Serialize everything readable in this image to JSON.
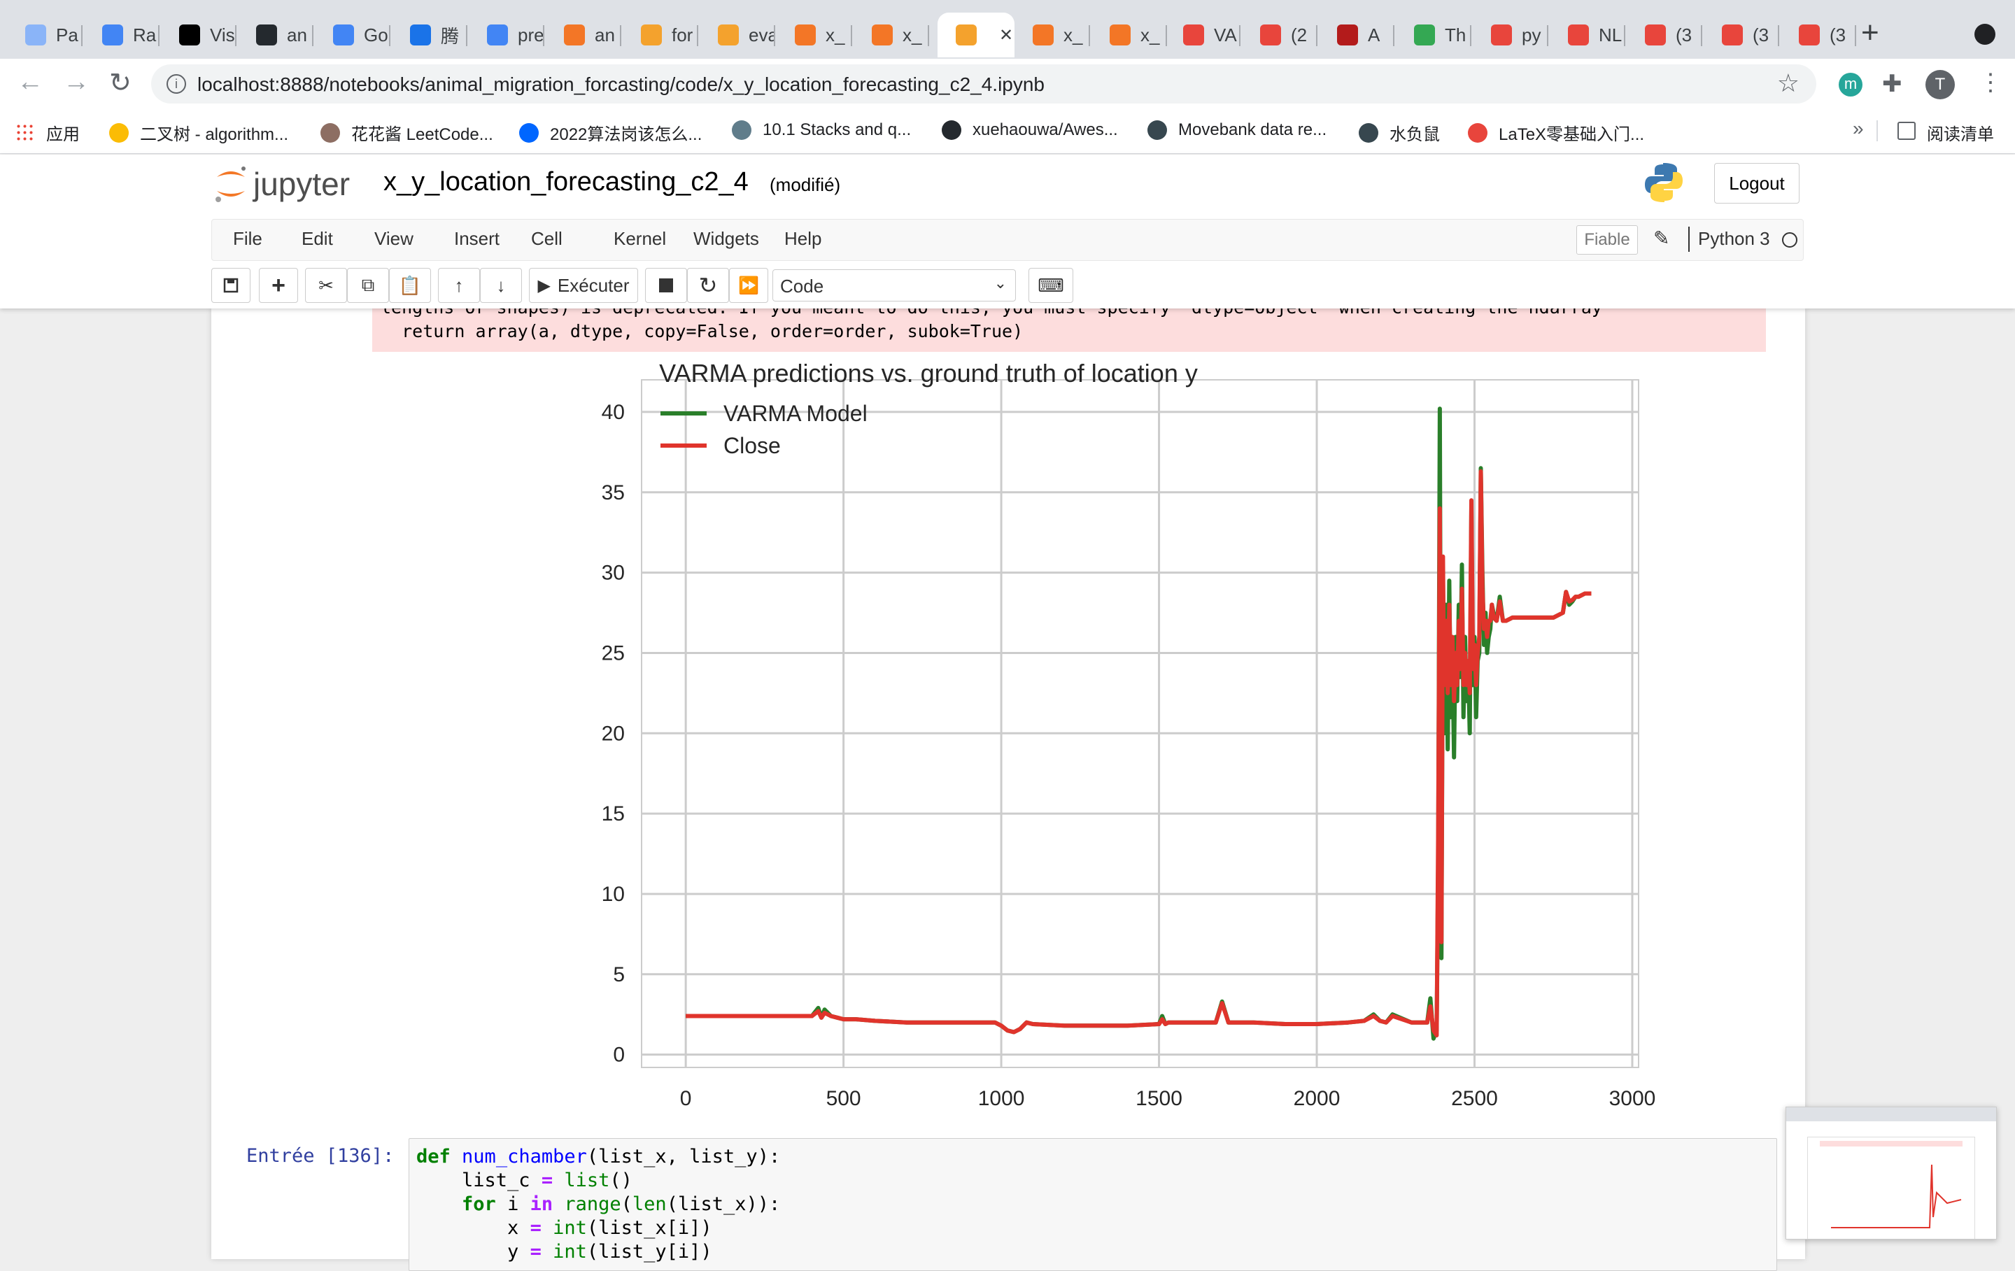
{
  "browser": {
    "tabs": [
      {
        "label": "Pa",
        "color": "#8ab4f8"
      },
      {
        "label": "Ra",
        "color": "#4285f4"
      },
      {
        "label": "Vis",
        "color": "#000000"
      },
      {
        "label": "an",
        "color": "#24292e"
      },
      {
        "label": "Go",
        "color": "#4285f4"
      },
      {
        "label": "腾",
        "color": "#1a73e8"
      },
      {
        "label": "pre",
        "color": "#4285f4"
      },
      {
        "label": "an",
        "color": "#f37626"
      },
      {
        "label": "for",
        "color": "#f4a22d"
      },
      {
        "label": "eva",
        "color": "#f4a22d"
      },
      {
        "label": "x_",
        "color": "#f37626"
      },
      {
        "label": "x_",
        "color": "#f37626"
      },
      {
        "label": "",
        "color": "#f4a22d",
        "active": true
      },
      {
        "label": "x_",
        "color": "#f37626"
      },
      {
        "label": "x_",
        "color": "#f37626"
      },
      {
        "label": "VA",
        "color": "#e8453c"
      },
      {
        "label": "(2",
        "color": "#e8453c"
      },
      {
        "label": "A",
        "color": "#b31b1b"
      },
      {
        "label": "Th",
        "color": "#34a853"
      },
      {
        "label": "py",
        "color": "#e8453c"
      },
      {
        "label": "NL",
        "color": "#e8453c"
      },
      {
        "label": "(3",
        "color": "#e8453c"
      },
      {
        "label": "(3",
        "color": "#e8453c"
      },
      {
        "label": "(3",
        "color": "#e8453c"
      }
    ],
    "url": "localhost:8888/notebooks/animal_migration_forcasting/code/x_y_location_forecasting_c2_4.ipynb",
    "bookmarks": [
      {
        "label": "应用",
        "color": "#4285f4"
      },
      {
        "label": "二叉树 - algorithm...",
        "color": "#fbbc05"
      },
      {
        "label": "花花酱 LeetCode...",
        "color": "#8d6e63"
      },
      {
        "label": "2022算法岗该怎么...",
        "color": "#0066ff"
      },
      {
        "label": "10.1 Stacks and q...",
        "color": "#607d8b"
      },
      {
        "label": "xuehaouwa/Awes...",
        "color": "#24292e"
      },
      {
        "label": "Movebank data re...",
        "color": "#37474f"
      },
      {
        "label": "水负鼠",
        "color": "#37474f"
      },
      {
        "label": "LaTeX零基础入门...",
        "color": "#e8453c"
      }
    ],
    "reading_list": "阅读清单",
    "more": "»",
    "profile_initial": "T",
    "ext_initial": "m"
  },
  "jupyter": {
    "logo_text": "jupyter",
    "notebook_title": "x_y_location_forecasting_c2_4",
    "modified": "(modifié)",
    "logout": "Logout",
    "menus": [
      "File",
      "Edit",
      "View",
      "Insert",
      "Cell",
      "Kernel",
      "Widgets",
      "Help"
    ],
    "trusted": "Fiable",
    "kernel": "Python 3",
    "run_label": "Exécuter",
    "cell_type": "Code"
  },
  "output": {
    "stderr_line1": "lengths or shapes) is deprecated. If you meant to do this, you must specify 'dtype=object' when creating the ndarray",
    "stderr_line2": "  return array(a, dtype, copy=False, order=order, subok=True)"
  },
  "chart_data": {
    "type": "line",
    "title": "VARMA predictions vs. ground truth of location y",
    "xlabel": "",
    "ylabel": "",
    "xlim": [
      -140,
      3020
    ],
    "ylim": [
      -0.8,
      42
    ],
    "xticks": [
      0,
      500,
      1000,
      1500,
      2000,
      2500,
      3000
    ],
    "yticks": [
      0,
      5,
      10,
      15,
      20,
      25,
      30,
      35,
      40
    ],
    "grid": true,
    "legend": "top-left",
    "series": [
      {
        "name": "VARMA Model",
        "color": "#2a7f2a",
        "x": [
          0,
          400,
          420,
          430,
          440,
          460,
          480,
          500,
          540,
          600,
          700,
          800,
          900,
          980,
          1000,
          1020,
          1040,
          1060,
          1080,
          1100,
          1200,
          1300,
          1400,
          1500,
          1510,
          1520,
          1530,
          1540,
          1600,
          1680,
          1700,
          1720,
          1800,
          1900,
          2000,
          2100,
          2150,
          2180,
          2200,
          2220,
          2240,
          2300,
          2350,
          2360,
          2370,
          2380,
          2385,
          2390,
          2395,
          2400,
          2402,
          2405,
          2410,
          2415,
          2420,
          2425,
          2430,
          2435,
          2440,
          2445,
          2450,
          2455,
          2460,
          2465,
          2470,
          2475,
          2480,
          2485,
          2490,
          2495,
          2500,
          2505,
          2510,
          2515,
          2520,
          2525,
          2530,
          2535,
          2540,
          2545,
          2550,
          2555,
          2560,
          2570,
          2580,
          2590,
          2600,
          2620,
          2650,
          2700,
          2750,
          2780,
          2790,
          2800,
          2810,
          2820,
          2830,
          2850,
          2870
        ],
        "y": [
          2.4,
          2.4,
          2.9,
          2.3,
          2.8,
          2.4,
          2.3,
          2.2,
          2.2,
          2.1,
          2.0,
          2.0,
          2.0,
          2.0,
          1.8,
          1.5,
          1.4,
          1.6,
          2.0,
          1.9,
          1.8,
          1.8,
          1.8,
          1.9,
          2.4,
          1.9,
          2.0,
          2.0,
          2.0,
          2.0,
          3.3,
          2.0,
          2.0,
          1.9,
          1.9,
          2.0,
          2.1,
          2.5,
          2.1,
          2.0,
          2.5,
          2.0,
          2.0,
          3.5,
          1.0,
          1.5,
          12.0,
          40.2,
          6.0,
          30.0,
          25.0,
          20.0,
          28.0,
          19.0,
          29.5,
          21.0,
          25.0,
          18.5,
          26.0,
          22.0,
          28.0,
          23.5,
          30.5,
          21.0,
          26.0,
          22.0,
          24.0,
          20.0,
          34.0,
          23.0,
          26.0,
          21.0,
          24.5,
          25.0,
          36.5,
          30.0,
          25.5,
          27.5,
          25.0,
          26.0,
          26.5,
          28.0,
          27.5,
          27.0,
          28.5,
          27.0,
          27.0,
          27.2,
          27.2,
          27.2,
          27.2,
          27.5,
          28.8,
          28.0,
          28.2,
          28.5,
          28.5,
          28.7,
          28.7
        ]
      },
      {
        "name": "Close",
        "color": "#e0342c",
        "x": [
          0,
          400,
          420,
          430,
          440,
          460,
          480,
          500,
          540,
          600,
          700,
          800,
          900,
          980,
          1000,
          1020,
          1040,
          1060,
          1080,
          1100,
          1200,
          1300,
          1400,
          1500,
          1510,
          1520,
          1530,
          1540,
          1600,
          1680,
          1700,
          1720,
          1800,
          1900,
          2000,
          2100,
          2150,
          2180,
          2200,
          2220,
          2240,
          2300,
          2350,
          2360,
          2370,
          2380,
          2385,
          2390,
          2395,
          2400,
          2402,
          2405,
          2410,
          2415,
          2420,
          2425,
          2430,
          2435,
          2440,
          2445,
          2450,
          2455,
          2460,
          2465,
          2470,
          2475,
          2480,
          2485,
          2490,
          2495,
          2500,
          2505,
          2510,
          2515,
          2520,
          2525,
          2530,
          2535,
          2540,
          2545,
          2550,
          2555,
          2560,
          2570,
          2580,
          2590,
          2600,
          2620,
          2650,
          2700,
          2750,
          2780,
          2790,
          2800,
          2810,
          2820,
          2830,
          2850,
          2870
        ],
        "y": [
          2.4,
          2.4,
          2.7,
          2.3,
          2.6,
          2.4,
          2.3,
          2.2,
          2.2,
          2.1,
          2.0,
          2.0,
          2.0,
          2.0,
          1.8,
          1.5,
          1.4,
          1.6,
          2.0,
          1.9,
          1.8,
          1.8,
          1.8,
          1.9,
          2.2,
          1.9,
          2.0,
          2.0,
          2.0,
          2.0,
          3.2,
          2.0,
          2.0,
          1.9,
          1.9,
          2.0,
          2.1,
          2.4,
          2.1,
          2.0,
          2.4,
          2.0,
          2.0,
          3.0,
          1.5,
          1.2,
          14.0,
          34.0,
          7.0,
          31.0,
          26.0,
          23.0,
          27.0,
          22.5,
          28.0,
          23.0,
          26.0,
          22.0,
          25.0,
          23.0,
          27.0,
          24.0,
          29.0,
          23.0,
          25.0,
          23.0,
          24.5,
          22.5,
          34.5,
          24.0,
          25.5,
          23.0,
          25.0,
          26.0,
          36.3,
          29.0,
          26.5,
          27.0,
          26.0,
          27.0,
          27.0,
          28.0,
          27.2,
          27.0,
          28.2,
          27.0,
          27.0,
          27.2,
          27.2,
          27.2,
          27.2,
          27.5,
          28.8,
          28.2,
          28.3,
          28.5,
          28.5,
          28.7,
          28.7
        ]
      }
    ]
  },
  "code": {
    "prompt": "Entrée [136]:"
  }
}
